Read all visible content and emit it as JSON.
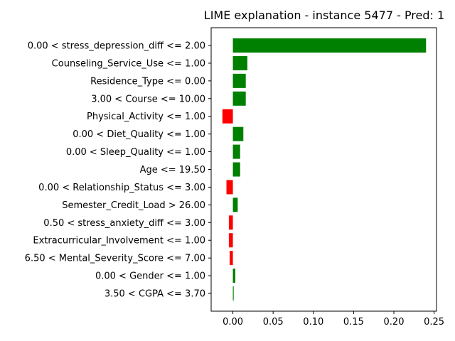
{
  "chart_data": {
    "type": "bar",
    "orientation": "horizontal",
    "title": "LIME explanation - instance 5477 - Pred: 1",
    "xlabel": "",
    "ylabel": "",
    "xlim": [
      -0.027,
      0.253
    ],
    "xticks": [
      0.0,
      0.05,
      0.1,
      0.15,
      0.2,
      0.25
    ],
    "xtick_labels": [
      "0.00",
      "0.05",
      "0.10",
      "0.15",
      "0.20",
      "0.25"
    ],
    "grid": false,
    "legend": "none",
    "positive_color": "#008000",
    "negative_color": "#ff0000",
    "categories": [
      "0.00 < stress_depression_diff <= 2.00",
      "Counseling_Service_Use <= 1.00",
      "Residence_Type <= 0.00",
      "3.00 < Course <= 10.00",
      "Physical_Activity <= 1.00",
      "0.00 < Diet_Quality <= 1.00",
      "0.00 < Sleep_Quality <= 1.00",
      "Age <= 19.50",
      "0.00 < Relationship_Status <= 3.00",
      "Semester_Credit_Load > 26.00",
      "0.50 < stress_anxiety_diff <= 3.00",
      "Extracurricular_Involvement <= 1.00",
      "6.50 < Mental_Severity_Score <= 7.00",
      "0.00 < Gender <= 1.00",
      "3.50 < CGPA <= 3.70"
    ],
    "values": [
      0.24,
      0.018,
      0.016,
      0.016,
      -0.013,
      0.013,
      0.009,
      0.009,
      -0.008,
      0.006,
      -0.005,
      -0.005,
      -0.004,
      0.003,
      0.001
    ]
  }
}
